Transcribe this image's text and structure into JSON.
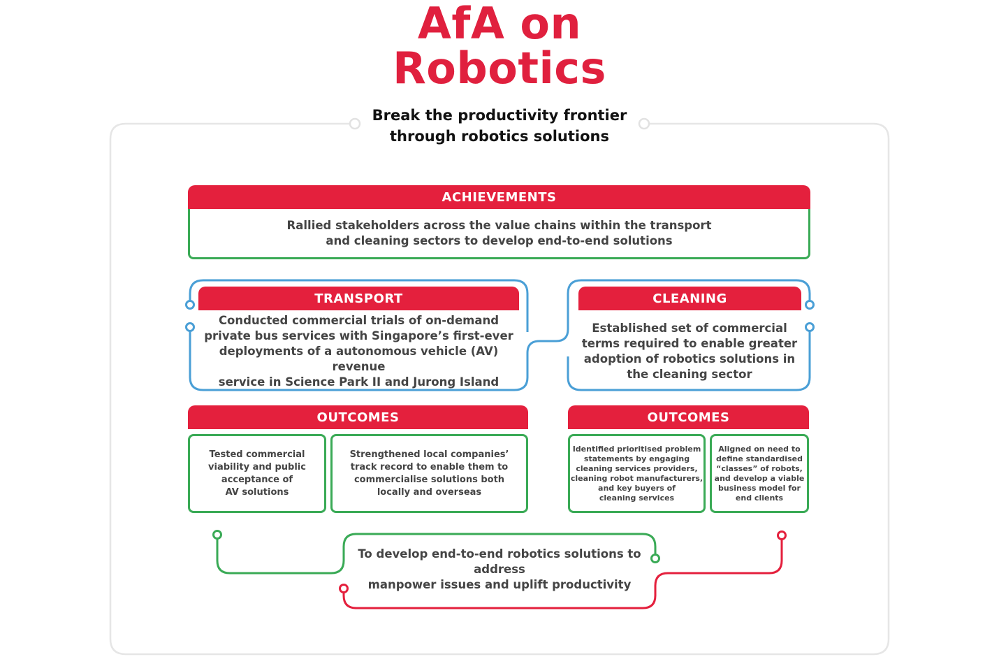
{
  "title_line1": "AfA on",
  "title_line2": "Robotics",
  "subtitle_line1": "Break the productivity frontier",
  "subtitle_line2": "through robotics solutions",
  "achievements": {
    "header": "ACHIEVEMENTS",
    "text_line1": "Rallied stakeholders across the value chains within the transport",
    "text_line2": "and cleaning sectors to develop end-to-end solutions"
  },
  "transport": {
    "header": "TRANSPORT",
    "lines": [
      "Conducted commercial trials of on-demand",
      "private bus services with Singapore’s first-ever",
      "deployments of a autonomous vehicle (AV) revenue",
      "service in Science Park II and Jurong Island"
    ]
  },
  "cleaning": {
    "header": "CLEANING",
    "lines": [
      "Established set of commercial",
      "terms required to enable greater",
      "adoption of robotics solutions in",
      "the cleaning sector"
    ]
  },
  "transport_outcomes": {
    "header": "OUTCOMES",
    "box1": [
      "Tested commercial",
      "viability and public",
      "acceptance of",
      "AV solutions"
    ],
    "box2": [
      "Strengthened local companies’",
      "track record to enable them to",
      "commercialise solutions both",
      "locally and overseas"
    ]
  },
  "cleaning_outcomes": {
    "header": "OUTCOMES",
    "box1": [
      "Identified prioritised problem",
      "statements by engaging",
      "cleaning services providers,",
      "cleaning robot manufacturers,",
      "and key buyers of",
      "cleaning services"
    ],
    "box2": [
      "Aligned on need to",
      "define standardised",
      "“classes” of robots,",
      "and develop a viable",
      "business model for",
      "end clients"
    ]
  },
  "goal": {
    "line1": "To develop end-to-end robotics solutions to address",
    "line2": "manpower issues and uplift productivity"
  },
  "colors": {
    "red": "#e4203d",
    "green": "#3aaa56",
    "blue": "#4a9fd6",
    "frame": "#e6e6e6"
  }
}
